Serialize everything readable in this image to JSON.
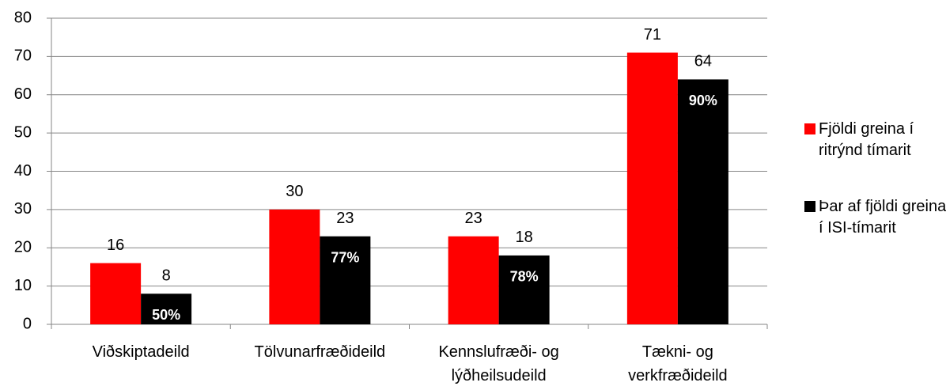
{
  "chart_data": {
    "type": "bar",
    "categories": [
      "Viðskiptadeild",
      "Tölvunarfræðideild",
      "Kennslufræði- og lýðheilsudeild",
      "Tækni- og verkfræðideild"
    ],
    "series": [
      {
        "name": "Fjöldi greina í ritrýnd tímarit",
        "color": "#ff0000",
        "values": [
          16,
          30,
          23,
          71
        ]
      },
      {
        "name": "Þar af fjöldi greina í ISI-tímarit",
        "color": "#000000",
        "values": [
          8,
          23,
          18,
          64
        ],
        "annotations": [
          "50%",
          "77%",
          "78%",
          "90%"
        ]
      }
    ],
    "ylim": [
      0,
      80
    ],
    "yticks": [
      0,
      10,
      20,
      30,
      40,
      50,
      60,
      70,
      80
    ],
    "grid": true,
    "legend": "right"
  }
}
